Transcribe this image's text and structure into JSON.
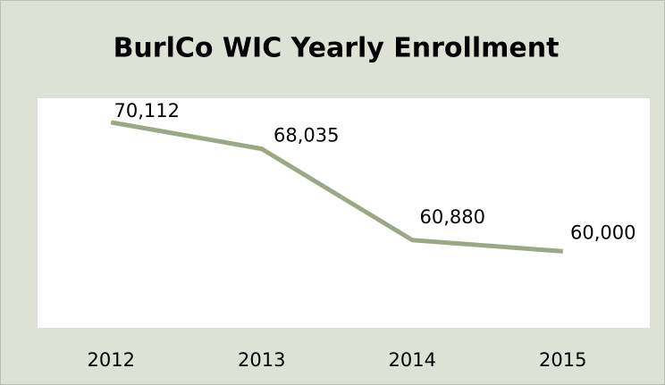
{
  "chart_data": {
    "type": "line",
    "title": "BurlCo WIC Yearly Enrollment",
    "categories": [
      "2012",
      "2013",
      "2014",
      "2015"
    ],
    "values": [
      70112,
      68035,
      60880,
      60000
    ],
    "value_labels": [
      "70,112",
      "68,035",
      "60,880",
      "60,000"
    ],
    "color": "#9aa884",
    "ylim": [
      54000,
      72000
    ]
  }
}
